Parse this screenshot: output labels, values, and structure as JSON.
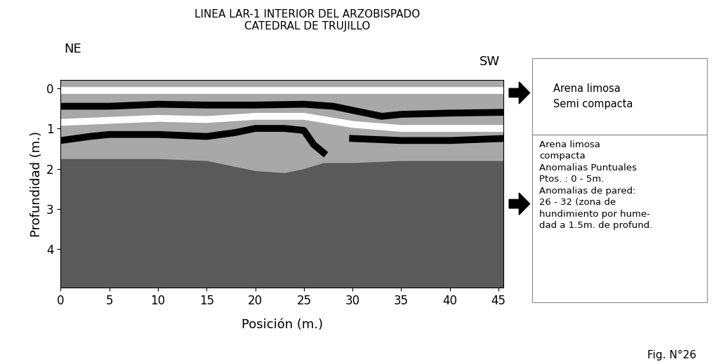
{
  "chart_data": {
    "type": "line",
    "title": "LINEA LAR-1 INTERIOR DEL ARZOBISPADO\nCATEDRAL DE TRUJILLO",
    "x_label": "Posición (m.)",
    "y_label": "Profundidad (m.)",
    "corner_labels": [
      "NE",
      "SW"
    ],
    "xlim": [
      0,
      45.5
    ],
    "ylim": [
      4.95,
      -0.2
    ],
    "xticks": [
      0,
      5,
      10,
      15,
      20,
      25,
      30,
      35,
      40,
      45
    ],
    "yticks": [
      0,
      1,
      2,
      3,
      4
    ],
    "grid": false,
    "series": [
      {
        "type": "area",
        "color": "#5a5a5a",
        "x": [
          0,
          5,
          10,
          15,
          18,
          20,
          23,
          25,
          27,
          30,
          35,
          40,
          45.5
        ],
        "values": [
          1.75,
          1.75,
          1.75,
          1.8,
          1.95,
          2.05,
          2.1,
          2.0,
          1.85,
          1.85,
          1.8,
          1.8,
          1.8
        ]
      },
      {
        "type": "line",
        "color": "#ffffff",
        "x": [
          0,
          10,
          20,
          30,
          45.5
        ],
        "values": [
          0.05,
          0.05,
          0.05,
          0.05,
          0.05
        ]
      },
      {
        "type": "line",
        "color": "#000000",
        "x": [
          0,
          5,
          10,
          15,
          20,
          25,
          28,
          30,
          33,
          35,
          40,
          45.5
        ],
        "values": [
          0.45,
          0.45,
          0.4,
          0.42,
          0.42,
          0.4,
          0.45,
          0.55,
          0.7,
          0.65,
          0.62,
          0.6
        ]
      },
      {
        "type": "line",
        "color": "#ffffff",
        "x": [
          0,
          5,
          10,
          15,
          20,
          25,
          30,
          35,
          40,
          45.5
        ],
        "values": [
          0.85,
          0.8,
          0.75,
          0.78,
          0.7,
          0.7,
          0.9,
          1.0,
          1.0,
          1.0
        ]
      },
      {
        "type": "line",
        "color": "#000000",
        "x": [
          0,
          3,
          5,
          10,
          15,
          18,
          20,
          23,
          25,
          26,
          27
        ],
        "values": [
          1.3,
          1.2,
          1.15,
          1.15,
          1.2,
          1.1,
          1.0,
          1.0,
          1.05,
          1.4,
          1.6
        ]
      },
      {
        "type": "line",
        "color": "#000000",
        "x": [
          30,
          35,
          40,
          45.5
        ],
        "values": [
          1.25,
          1.3,
          1.3,
          1.25
        ]
      }
    ],
    "annotations": [
      "Arena limosa\nSemi compacta",
      "Arena limosa\ncompacta\nAnomalias Puntuales\nPtos. : 0 - 5m.\nAnomalias de pared:\n26 - 32 (zona de\nhundimiento por hume-\ndad a 1.5m. de profund."
    ],
    "figure_label": "Fig. N°26"
  }
}
